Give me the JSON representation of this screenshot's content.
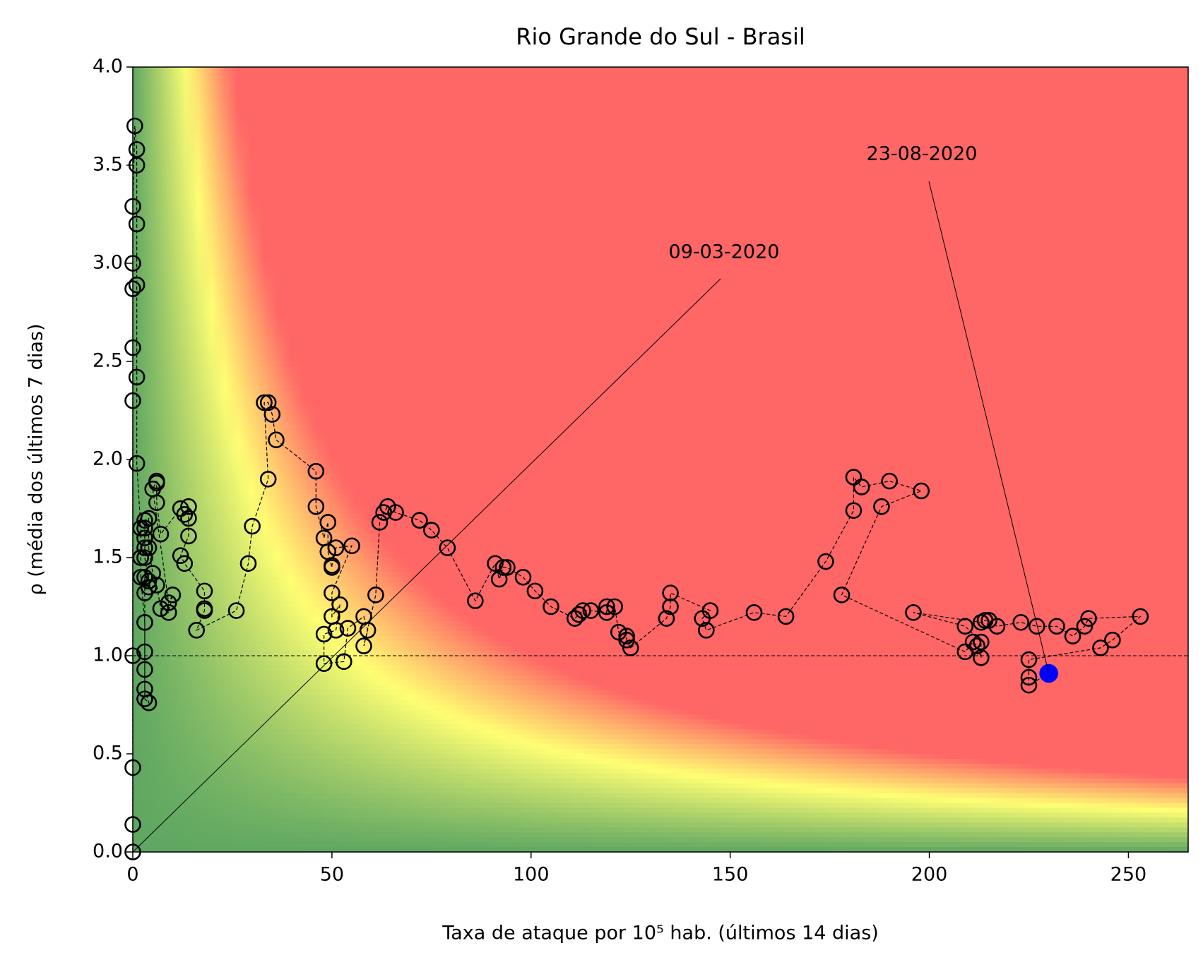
{
  "chart_data": {
    "type": "scatter",
    "title": "Rio Grande do Sul - Brasil",
    "x_label": "Taxa de ataque por 10⁵ hab. (últimos 14 dias)",
    "y_label": "ρ (média dos últimos 7 dias)",
    "x": [
      0,
      0,
      0,
      0,
      0,
      0,
      0,
      0,
      0,
      0.5,
      1,
      1,
      1,
      1,
      1,
      1,
      2,
      2,
      2,
      3,
      3,
      4,
      3,
      3,
      3,
      3,
      3,
      3,
      4,
      3,
      3,
      3,
      3,
      3,
      4,
      4,
      5,
      4,
      6,
      7,
      9,
      10,
      9,
      5,
      6,
      6,
      6,
      7,
      12,
      13,
      14,
      14,
      14,
      12,
      13,
      18,
      18,
      18,
      16,
      26,
      29,
      30,
      34,
      33,
      34,
      35,
      36,
      46,
      46,
      48,
      49,
      49,
      50,
      50,
      51,
      55,
      50,
      50,
      52,
      51,
      48,
      48,
      53,
      54,
      58,
      59,
      58,
      61,
      62,
      63,
      64,
      66,
      72,
      75,
      79,
      86,
      91,
      92,
      93,
      94,
      98,
      101,
      105,
      111,
      112,
      113,
      115,
      119,
      119,
      121,
      122,
      124,
      124,
      125,
      134,
      135,
      135,
      145,
      143,
      144,
      156,
      164,
      174,
      181,
      181,
      183,
      190,
      198,
      188,
      178,
      209,
      211,
      212,
      213,
      213,
      209,
      196,
      213,
      214,
      215,
      217,
      223,
      227,
      232,
      236,
      239,
      240,
      253,
      246,
      243,
      225,
      225,
      225,
      230
    ],
    "values": [
      0,
      0.14,
      0.43,
      1.0,
      2.3,
      2.57,
      2.87,
      3.0,
      3.29,
      3.7,
      3.58,
      3.5,
      3.2,
      2.89,
      2.42,
      1.98,
      1.65,
      1.5,
      1.4,
      1.17,
      0.78,
      0.76,
      0.83,
      0.93,
      1.02,
      1.17,
      1.32,
      1.4,
      1.38,
      1.5,
      1.55,
      1.6,
      1.65,
      1.69,
      1.7,
      1.55,
      1.42,
      1.35,
      1.36,
      1.24,
      1.22,
      1.31,
      1.27,
      1.85,
      1.89,
      1.88,
      1.78,
      1.62,
      1.75,
      1.72,
      1.76,
      1.7,
      1.61,
      1.51,
      1.47,
      1.33,
      1.24,
      1.23,
      1.13,
      1.23,
      1.47,
      1.66,
      1.9,
      2.29,
      2.29,
      2.23,
      2.1,
      1.94,
      1.76,
      1.6,
      1.68,
      1.53,
      1.45,
      1.46,
      1.55,
      1.56,
      1.32,
      1.2,
      1.26,
      1.13,
      1.11,
      0.96,
      0.97,
      1.14,
      1.2,
      1.13,
      1.05,
      1.31,
      1.68,
      1.73,
      1.76,
      1.73,
      1.69,
      1.64,
      1.55,
      1.28,
      1.47,
      1.39,
      1.45,
      1.45,
      1.4,
      1.33,
      1.25,
      1.19,
      1.21,
      1.23,
      1.23,
      1.22,
      1.25,
      1.25,
      1.12,
      1.1,
      1.08,
      1.04,
      1.19,
      1.25,
      1.32,
      1.23,
      1.19,
      1.13,
      1.22,
      1.2,
      1.48,
      1.74,
      1.91,
      1.86,
      1.89,
      1.84,
      1.76,
      1.31,
      1.02,
      1.07,
      1.05,
      0.99,
      1.07,
      1.15,
      1.22,
      1.17,
      1.18,
      1.18,
      1.15,
      1.17,
      1.15,
      1.15,
      1.1,
      1.15,
      1.19,
      1.2,
      1.08,
      1.04,
      0.98,
      0.89,
      0.85,
      0.91
    ],
    "marker_color": "#000000",
    "last_point_color": "#0000ff",
    "annotations": [
      {
        "text": "09-03-2020",
        "at": "first"
      },
      {
        "text": "23-08-2020",
        "at": "last"
      }
    ],
    "hline": 1,
    "background_colors": [
      "#5fa762",
      "#ffff73",
      "#ff6666"
    ],
    "xlim": [
      0,
      265
    ],
    "xticks": [
      0,
      50,
      100,
      150,
      200,
      250
    ],
    "ylim": [
      0,
      4
    ],
    "yticks": [
      {
        "value": 0,
        "label": "0.0"
      },
      0.5,
      {
        "value": 1,
        "label": "1.0"
      },
      1.5,
      {
        "value": 2,
        "label": "2.0"
      },
      2.5,
      {
        "value": 3,
        "label": "3.0"
      },
      3.5,
      {
        "value": 4,
        "label": "4.0"
      }
    ]
  }
}
